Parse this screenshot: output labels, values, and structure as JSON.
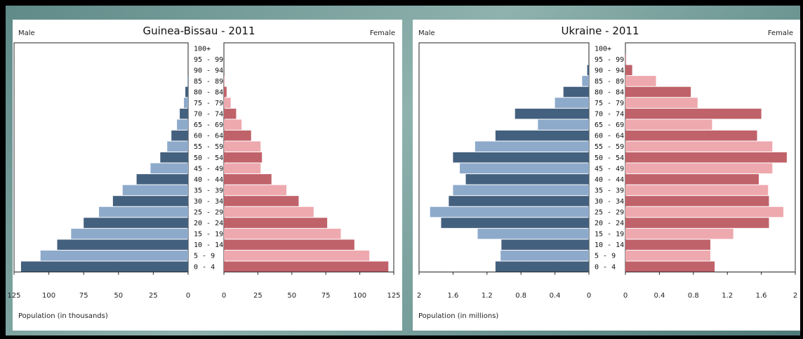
{
  "age_groups": [
    "100+",
    "95 - 99",
    "90 - 94",
    "85 - 89",
    "80 - 84",
    "75 - 79",
    "70 - 74",
    "65 - 69",
    "60 - 64",
    "55 - 59",
    "50 - 54",
    "45 - 49",
    "40 - 44",
    "35 - 39",
    "30 - 34",
    "25 - 29",
    "20 - 24",
    "15 - 19",
    "10 - 14",
    "5 - 9",
    "0 - 4"
  ],
  "colors": {
    "male_dark": "#44607f",
    "male_light": "#8eaacb",
    "female_dark": "#c0626a",
    "female_light": "#eea9ae"
  },
  "chart_data": [
    {
      "type": "bar",
      "title": "Guinea-Bissau - 2011",
      "left_label": "Male",
      "right_label": "Female",
      "xlabel": "Population (in thousands)",
      "xlim": [
        0,
        125
      ],
      "ticks_left": [
        "125",
        "100",
        "75",
        "50",
        "25",
        "0"
      ],
      "ticks_right": [
        "0",
        "25",
        "50",
        "75",
        "100",
        "125"
      ],
      "tick_values": [
        0,
        25,
        50,
        75,
        100,
        125
      ],
      "categories": [
        "100+",
        "95 - 99",
        "90 - 94",
        "85 - 89",
        "80 - 84",
        "75 - 79",
        "70 - 74",
        "65 - 69",
        "60 - 64",
        "55 - 59",
        "50 - 54",
        "45 - 49",
        "40 - 44",
        "35 - 39",
        "30 - 34",
        "25 - 29",
        "20 - 24",
        "15 - 19",
        "10 - 14",
        "5 - 9",
        "0 - 4"
      ],
      "series": [
        {
          "name": "Male",
          "values": [
            0,
            0,
            0,
            0.5,
            2,
            3,
            6,
            8,
            12,
            15,
            20,
            27,
            37,
            47,
            54,
            64,
            75,
            84,
            94,
            106,
            120
          ]
        },
        {
          "name": "Female",
          "values": [
            0,
            0,
            0,
            0.5,
            2,
            5,
            9,
            13,
            20,
            27,
            28,
            27,
            35,
            46,
            55,
            66,
            76,
            86,
            96,
            107,
            121
          ]
        }
      ]
    },
    {
      "type": "bar",
      "title": "Ukraine - 2011",
      "left_label": "Male",
      "right_label": "Female",
      "xlabel": "Population (in millions)",
      "xlim": [
        0,
        2
      ],
      "ticks_left": [
        "2",
        "1.6",
        "1.2",
        "0.8",
        "0.4",
        "0"
      ],
      "ticks_right": [
        "0",
        "0.4",
        "0.8",
        "1.2",
        "1.6",
        "2"
      ],
      "tick_values": [
        0,
        0.4,
        0.8,
        1.2,
        1.6,
        2
      ],
      "categories": [
        "100+",
        "95 - 99",
        "90 - 94",
        "85 - 89",
        "80 - 84",
        "75 - 79",
        "70 - 74",
        "65 - 69",
        "60 - 64",
        "55 - 59",
        "50 - 54",
        "45 - 49",
        "40 - 44",
        "35 - 39",
        "30 - 34",
        "25 - 29",
        "20 - 24",
        "15 - 19",
        "10 - 14",
        "5 - 9",
        "0 - 4"
      ],
      "series": [
        {
          "name": "Male",
          "values": [
            0,
            0,
            0.02,
            0.08,
            0.3,
            0.4,
            0.87,
            0.6,
            1.1,
            1.34,
            1.6,
            1.52,
            1.45,
            1.6,
            1.65,
            1.87,
            1.74,
            1.31,
            1.03,
            1.04,
            1.1
          ]
        },
        {
          "name": "Female",
          "values": [
            0,
            0.01,
            0.08,
            0.36,
            0.77,
            0.85,
            1.6,
            1.02,
            1.55,
            1.73,
            1.9,
            1.73,
            1.57,
            1.68,
            1.69,
            1.86,
            1.69,
            1.27,
            1.0,
            1.0,
            1.05
          ]
        }
      ]
    }
  ]
}
